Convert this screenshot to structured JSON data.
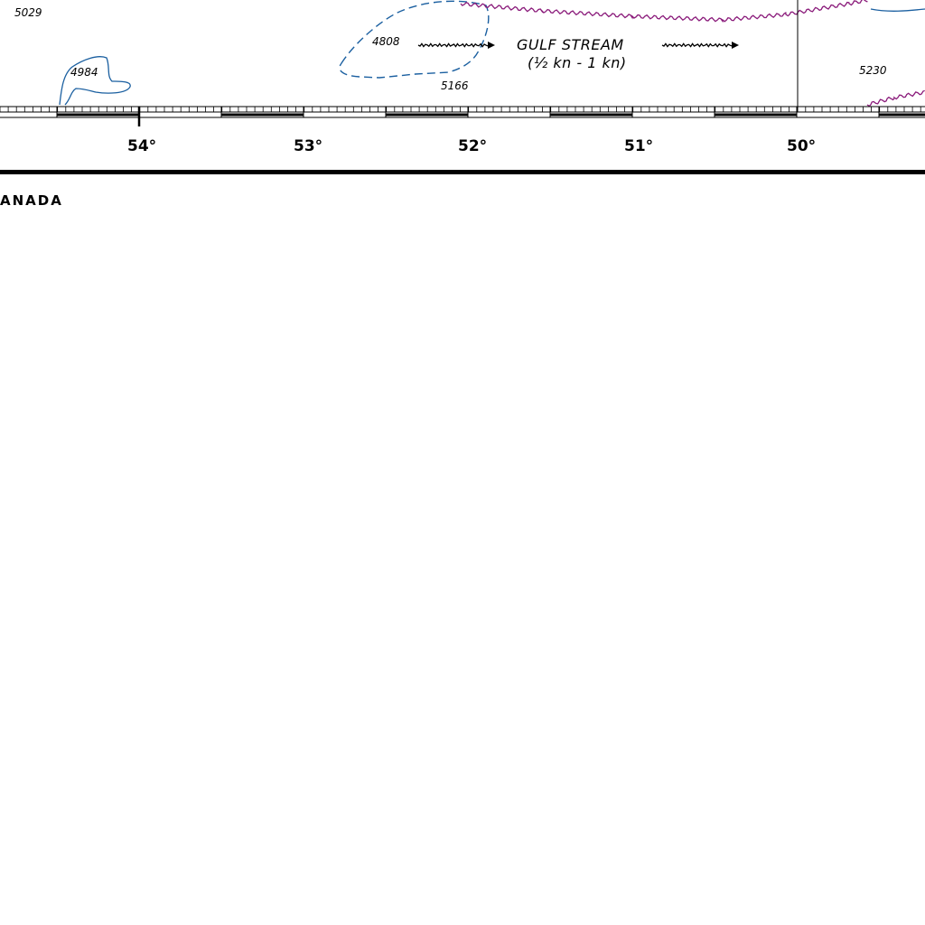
{
  "map": {
    "soundings": [
      "5029",
      "4808",
      "4984",
      "5166",
      "5230"
    ],
    "current": {
      "name": "GULF STREAM",
      "speed": "(½ kn - 1 kn)"
    },
    "longitudes": [
      "54°",
      "53°",
      "52°",
      "51°",
      "50°"
    ],
    "country": "ANADA"
  },
  "colors": {
    "depth_contour": "#1a5fa0",
    "current_boundary": "#8a1a7a",
    "ink": "#000000",
    "paper": "#ffffff"
  }
}
